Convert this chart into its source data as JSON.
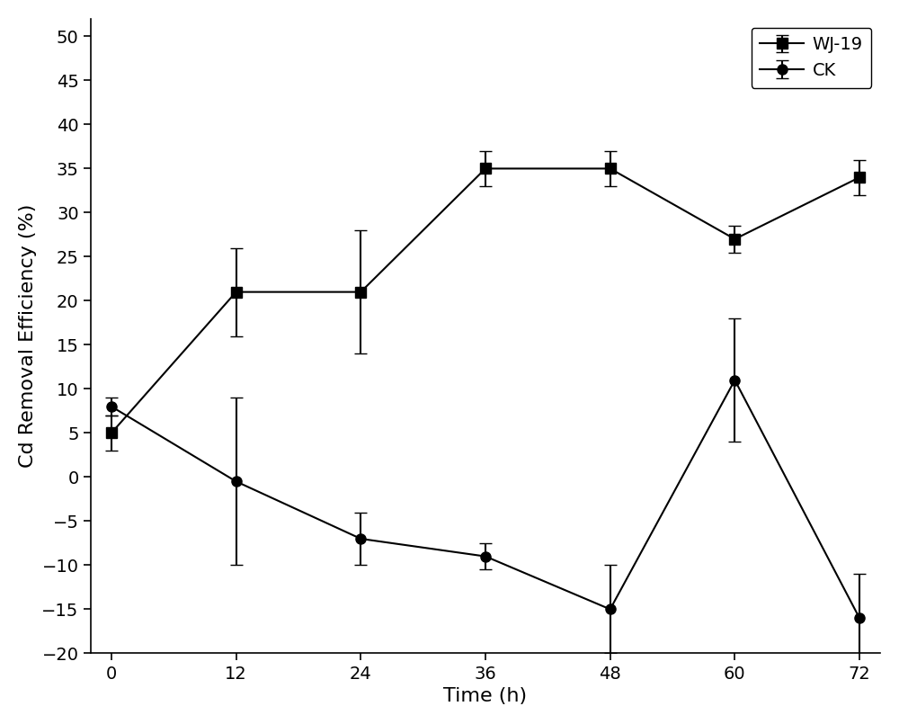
{
  "time": [
    0,
    12,
    24,
    36,
    48,
    60,
    72
  ],
  "wj19_y": [
    5,
    21,
    21,
    35,
    35,
    27,
    34
  ],
  "wj19_yerr": [
    2,
    5,
    7,
    2,
    2,
    1.5,
    2
  ],
  "ck_y": [
    8,
    -0.5,
    -7,
    -9,
    -15,
    11,
    -16
  ],
  "ck_yerr": [
    1,
    9.5,
    3,
    1.5,
    5,
    7,
    5
  ],
  "xlabel": "Time (h)",
  "ylabel": "Cd Removal Efficiency (%)",
  "legend_wj19": "WJ-19",
  "legend_ck": "CK",
  "xlim": [
    -2,
    74
  ],
  "ylim": [
    -20,
    52
  ],
  "yticks": [
    -20,
    -15,
    -10,
    -5,
    0,
    5,
    10,
    15,
    20,
    25,
    30,
    35,
    40,
    45,
    50
  ],
  "xticks": [
    0,
    12,
    24,
    36,
    48,
    60,
    72
  ],
  "line_color": "#000000",
  "marker_square": "s",
  "marker_circle": "o",
  "markersize": 8,
  "linewidth": 1.5,
  "capsize": 5,
  "elinewidth": 1.5,
  "background_color": "#ffffff",
  "legend_fontsize": 14,
  "axis_label_fontsize": 16,
  "tick_fontsize": 14
}
